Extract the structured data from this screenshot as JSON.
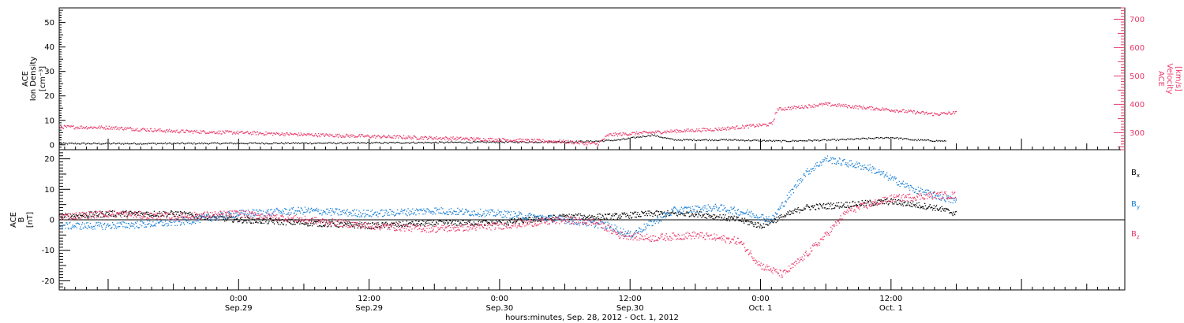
{
  "colors": {
    "black": "#000000",
    "magenta": "#e8396a",
    "blue": "#1a7fd6"
  },
  "chart_data": [
    {
      "type": "scatter",
      "panel": "top",
      "ylabel_left": [
        "ACE",
        "Ion Density",
        "[cm⁻³]"
      ],
      "ylabel_right": [
        "ACE",
        "Velocity",
        "[km/s]"
      ],
      "ylim_left": [
        -2,
        56
      ],
      "ylim_right": [
        240,
        740
      ],
      "yticks_left": [
        "0",
        "10",
        "20",
        "30",
        "40",
        "50"
      ],
      "yticks_right": [
        "300",
        "400",
        "500",
        "600",
        "700"
      ],
      "x_hours_range": [
        -16.5,
        81.5
      ],
      "series": [
        {
          "axis": "left",
          "color": "black",
          "x": [
            -16.5,
            -10,
            0,
            10,
            20,
            30,
            33,
            35,
            38,
            40,
            45,
            50,
            55,
            60,
            62,
            65
          ],
          "y": [
            0.5,
            0.5,
            0.6,
            0.7,
            1,
            1.2,
            1.5,
            2,
            4,
            2,
            2,
            1.5,
            2,
            3,
            2,
            1.5
          ]
        },
        {
          "axis": "right",
          "color": "magenta",
          "x": [
            -16.5,
            -12,
            -6,
            0,
            6,
            12,
            18,
            24,
            30,
            33,
            34,
            40,
            44,
            49,
            49.5,
            54,
            60,
            64,
            66
          ],
          "y": [
            320,
            318,
            305,
            300,
            293,
            287,
            281,
            275,
            268,
            260,
            292,
            305,
            312,
            330,
            382,
            400,
            380,
            365,
            370
          ]
        }
      ]
    },
    {
      "type": "scatter",
      "panel": "bottom",
      "ylabel_left": [
        "ACE",
        "B",
        "[nT]"
      ],
      "ylim": [
        -23,
        23
      ],
      "yticks": [
        "-20",
        "-10",
        "0",
        "10",
        "20"
      ],
      "x_hours_range": [
        -16.5,
        81.5
      ],
      "x_tick_labels": [
        {
          "hour": 0,
          "time": "0:00",
          "date": "Sep.29"
        },
        {
          "hour": 12,
          "time": "12:00",
          "date": "Sep.29"
        },
        {
          "hour": 24,
          "time": "0:00",
          "date": "Sep.30"
        },
        {
          "hour": 36,
          "time": "12:00",
          "date": "Sep.30"
        },
        {
          "hour": 48,
          "time": "0:00",
          "date": "Oct. 1"
        },
        {
          "hour": 60,
          "time": "12:00",
          "date": "Oct. 1"
        }
      ],
      "xlabel": "hours:minutes, Sep. 28, 2012 - Oct. 1, 2012",
      "series": [
        {
          "name": "Bx",
          "color": "black",
          "x": [
            -16.5,
            -12,
            -6,
            0,
            6,
            12,
            18,
            24,
            30,
            34,
            38,
            42,
            46,
            48,
            52,
            56,
            60,
            64,
            66
          ],
          "y": [
            1,
            2,
            2,
            0,
            -1,
            -2,
            -1,
            -1,
            1,
            1,
            2,
            2,
            0,
            -2,
            4,
            5,
            6,
            4,
            2
          ]
        },
        {
          "name": "By",
          "color": "blue",
          "x": [
            -16.5,
            -12,
            -6,
            0,
            6,
            12,
            18,
            24,
            30,
            34,
            36,
            40,
            44,
            47,
            49,
            52,
            54,
            58,
            62,
            66
          ],
          "y": [
            -2,
            -2,
            -1,
            2,
            3,
            2,
            3,
            2,
            0,
            -2,
            -5,
            3,
            4,
            2,
            0,
            15,
            20,
            17,
            10,
            6
          ]
        },
        {
          "name": "Bz",
          "color": "magenta",
          "x": [
            -16.5,
            -12,
            -6,
            0,
            6,
            12,
            18,
            24,
            30,
            33,
            35,
            38,
            42,
            46,
            48,
            50,
            52,
            54,
            56,
            60,
            64,
            66
          ],
          "y": [
            1,
            2,
            1,
            2,
            0,
            -2,
            -3,
            -2,
            0,
            -1,
            -5,
            -6,
            -5,
            -7,
            -15,
            -18,
            -12,
            -5,
            3,
            7,
            8,
            8
          ]
        }
      ]
    }
  ],
  "legend": {
    "bx": {
      "base": "B",
      "sub": "x"
    },
    "by": {
      "base": "B",
      "sub": "y"
    },
    "bz": {
      "base": "B",
      "sub": "z"
    }
  }
}
